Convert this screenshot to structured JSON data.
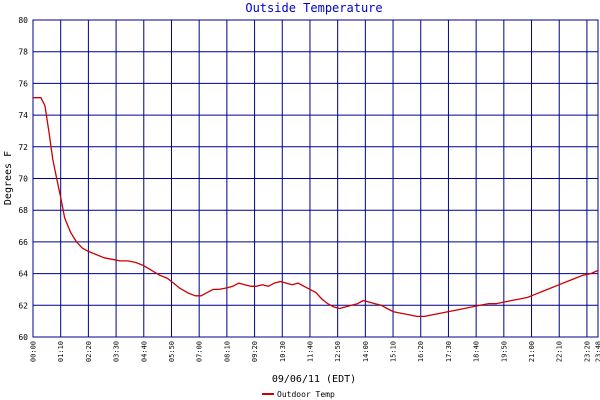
{
  "chart_data": {
    "type": "line",
    "title": "Outside Temperature",
    "xlabel": "09/06/11 (EDT)",
    "ylabel": "Degrees F",
    "ylim": [
      60,
      80
    ],
    "xlim_minutes": [
      0,
      1428
    ],
    "y_ticks": [
      "60",
      "62",
      "64",
      "66",
      "68",
      "70",
      "72",
      "74",
      "76",
      "78",
      "80"
    ],
    "x_ticks": [
      "00:00",
      "01:10",
      "02:20",
      "03:30",
      "04:40",
      "05:50",
      "07:00",
      "08:10",
      "09:20",
      "10:30",
      "11:40",
      "12:50",
      "14:00",
      "15:10",
      "16:20",
      "17:30",
      "18:40",
      "19:50",
      "21:00",
      "22:10",
      "23:20",
      "23:48"
    ],
    "grid": true,
    "legend_position": "bottom-left",
    "colors": {
      "grid": "#00008b",
      "series": "#cc0000",
      "title": "#0000cc"
    },
    "series": [
      {
        "name": "Outdoor Temp",
        "x": [
          "00:00",
          "00:20",
          "00:30",
          "00:40",
          "00:50",
          "01:00",
          "01:10",
          "01:20",
          "01:35",
          "01:50",
          "02:05",
          "02:20",
          "02:40",
          "03:00",
          "03:20",
          "03:40",
          "04:00",
          "04:20",
          "04:40",
          "05:00",
          "05:20",
          "05:40",
          "05:55",
          "06:10",
          "06:30",
          "06:50",
          "07:05",
          "07:20",
          "07:35",
          "07:50",
          "08:10",
          "08:25",
          "08:40",
          "08:55",
          "09:10",
          "09:25",
          "09:40",
          "09:55",
          "10:10",
          "10:25",
          "10:40",
          "10:55",
          "11:10",
          "11:25",
          "11:40",
          "11:55",
          "12:10",
          "12:25",
          "12:40",
          "12:55",
          "13:10",
          "13:25",
          "13:40",
          "13:55",
          "14:10",
          "14:25",
          "14:40",
          "14:55",
          "15:10",
          "15:30",
          "15:50",
          "16:10",
          "16:30",
          "16:50",
          "17:10",
          "17:30",
          "17:50",
          "18:10",
          "18:30",
          "18:50",
          "19:10",
          "19:30",
          "19:50",
          "20:10",
          "20:30",
          "20:50",
          "21:10",
          "21:30",
          "21:50",
          "22:10",
          "22:30",
          "22:50",
          "23:10",
          "23:30",
          "23:48"
        ],
        "values": [
          75.1,
          75.1,
          74.6,
          73.0,
          71.2,
          70.0,
          68.8,
          67.5,
          66.6,
          66.0,
          65.6,
          65.4,
          65.2,
          65.0,
          64.9,
          64.8,
          64.8,
          64.7,
          64.5,
          64.2,
          63.9,
          63.7,
          63.4,
          63.1,
          62.8,
          62.6,
          62.6,
          62.8,
          63.0,
          63.0,
          63.1,
          63.2,
          63.4,
          63.3,
          63.2,
          63.2,
          63.3,
          63.2,
          63.4,
          63.5,
          63.4,
          63.3,
          63.4,
          63.2,
          63.0,
          62.8,
          62.4,
          62.1,
          61.9,
          61.8,
          61.9,
          62.0,
          62.1,
          62.3,
          62.2,
          62.1,
          62.0,
          61.8,
          61.6,
          61.5,
          61.4,
          61.3,
          61.3,
          61.4,
          61.5,
          61.6,
          61.7,
          61.8,
          61.9,
          62.0,
          62.1,
          62.1,
          62.2,
          62.3,
          62.4,
          62.5,
          62.7,
          62.9,
          63.1,
          63.3,
          63.5,
          63.7,
          63.9,
          64.0,
          64.2
        ]
      }
    ]
  }
}
